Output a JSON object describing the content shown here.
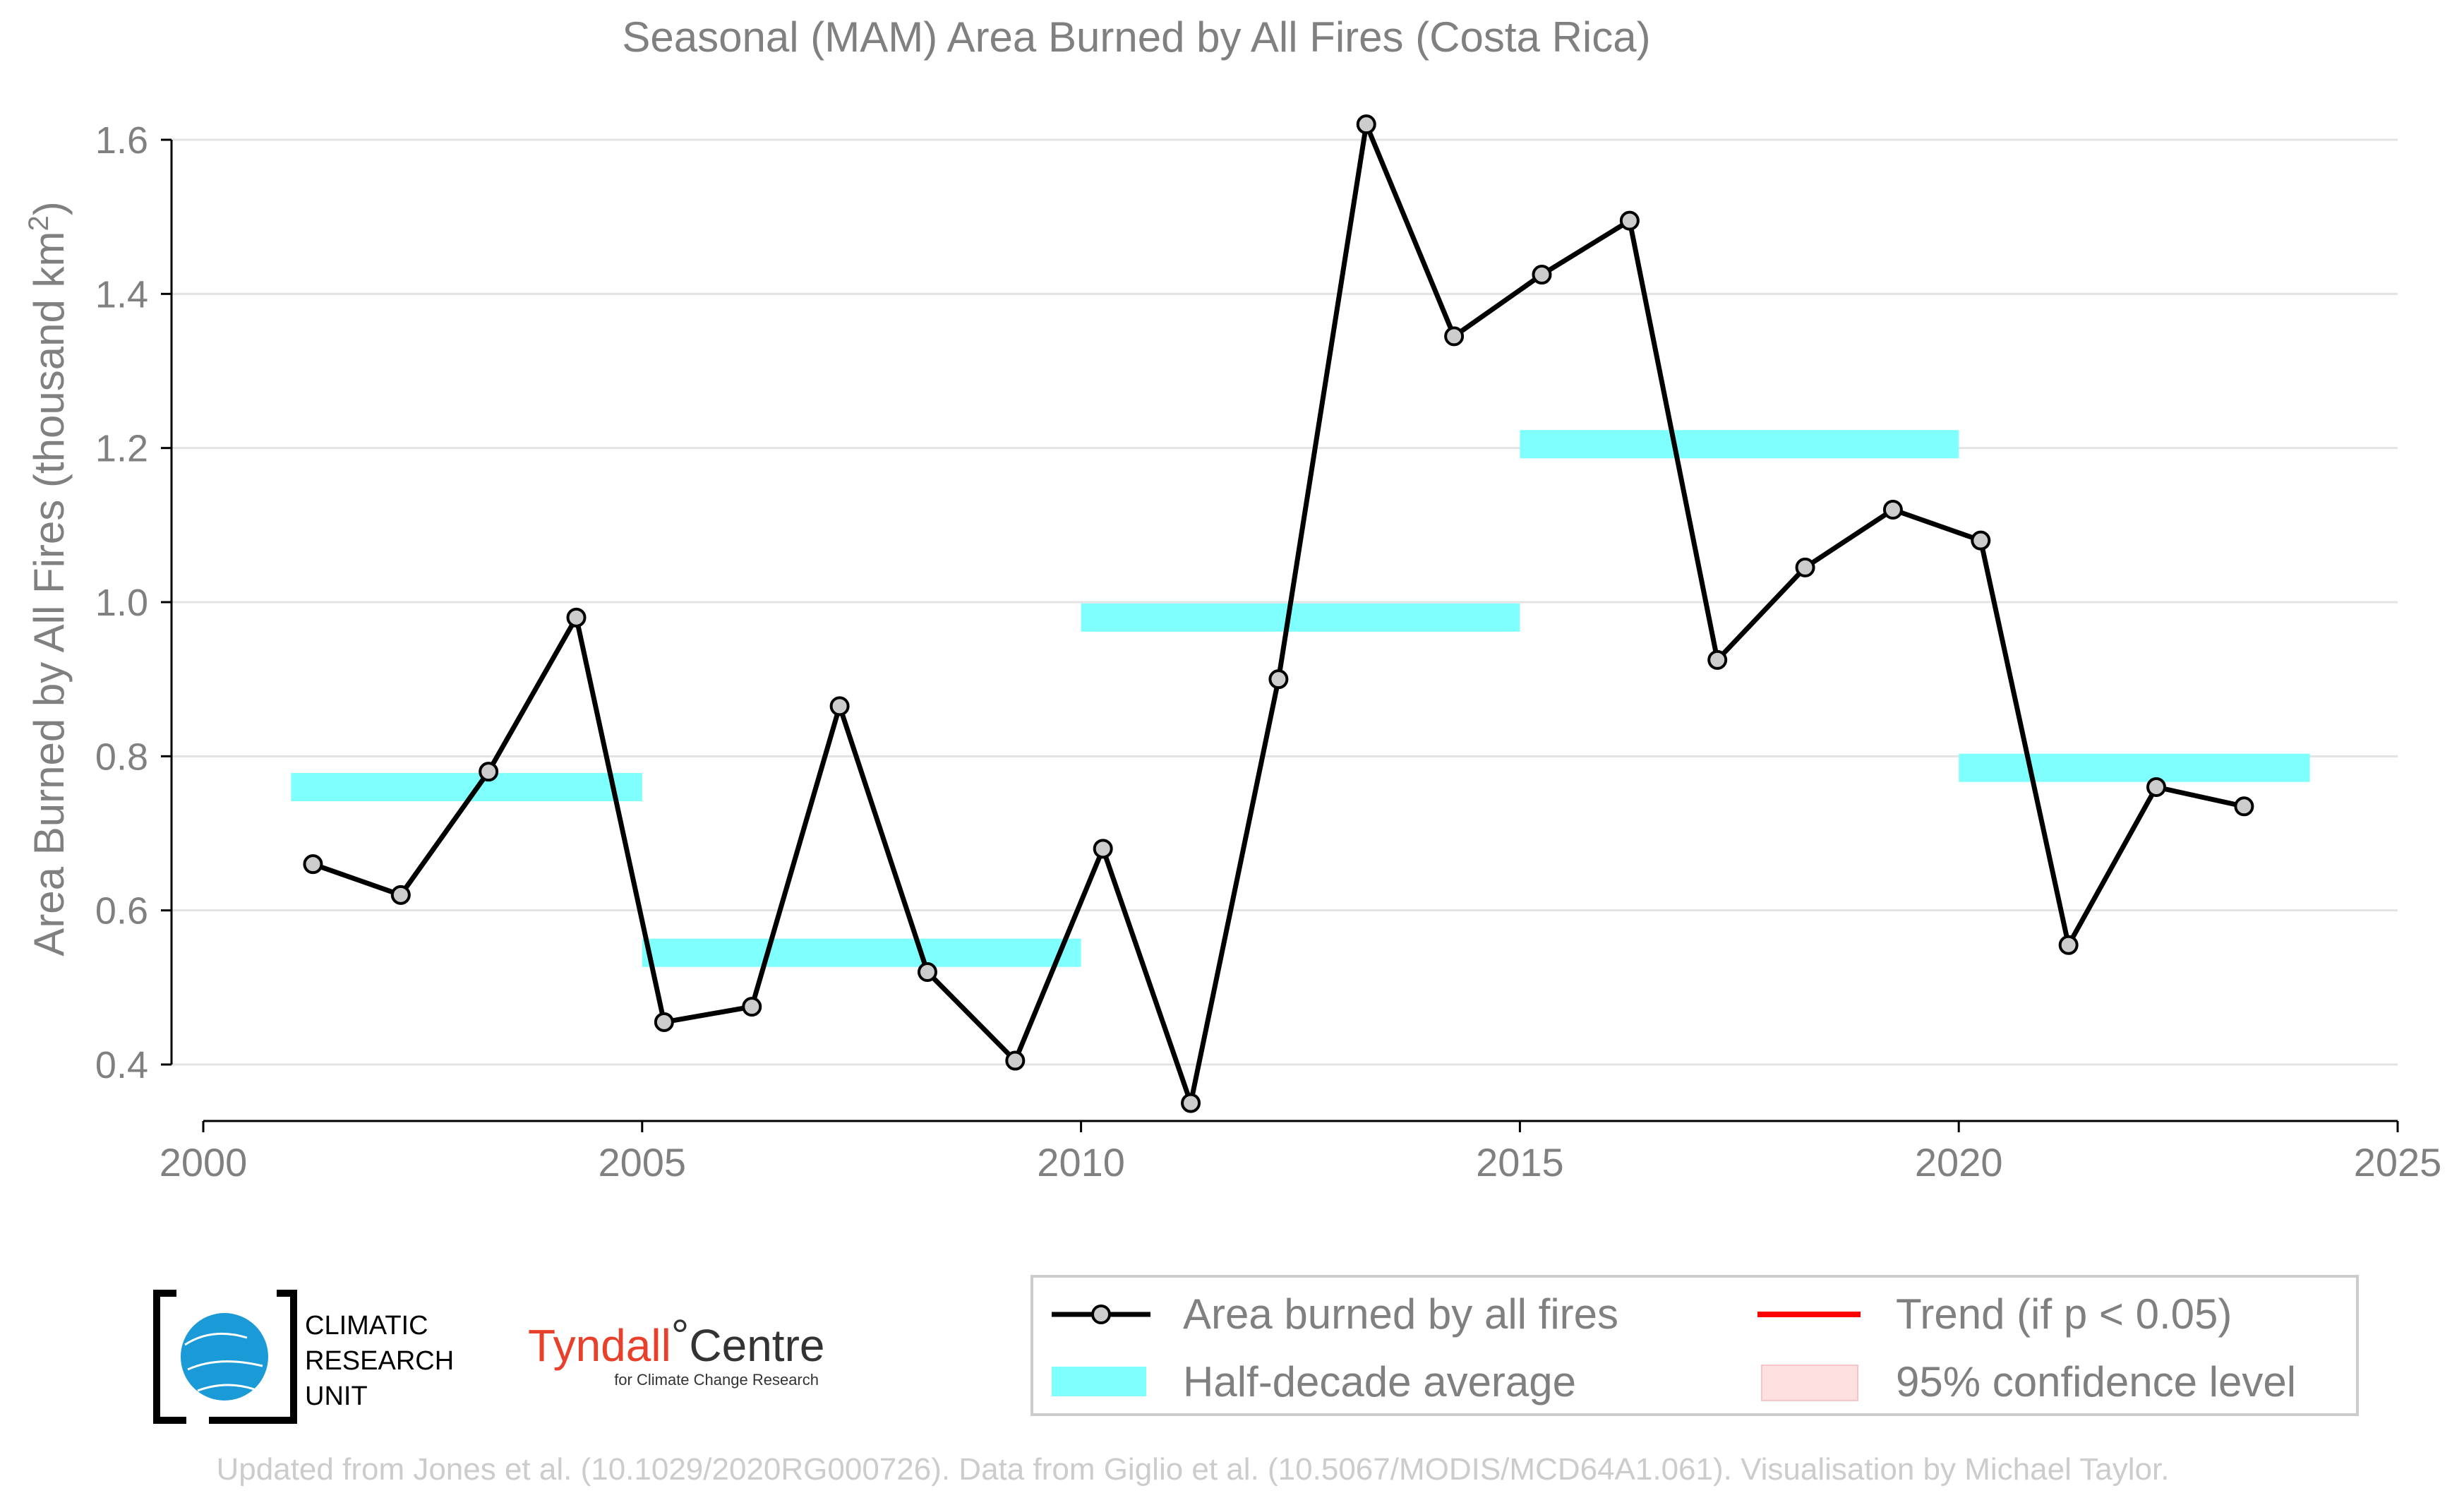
{
  "chart_data": {
    "type": "line",
    "title": "Seasonal (MAM) Area Burned by All Fires (Costa Rica)",
    "xlabel": "",
    "ylabel": "Area Burned by All Fires (thousand km",
    "ylabel_sup": "2",
    "ylabel_close": ")",
    "xlim": [
      2000,
      2025
    ],
    "ylim": [
      0.25,
      1.65
    ],
    "x_ticks": [
      2000,
      2005,
      2010,
      2015,
      2020,
      2025
    ],
    "y_ticks": [
      0.4,
      0.6,
      0.8,
      1.0,
      1.2,
      1.4,
      1.6
    ],
    "y_tick_labels": [
      "0.4",
      "0.6",
      "0.8",
      "1.0",
      "1.2",
      "1.4",
      "1.6"
    ],
    "grid": "horizontal",
    "legend_position": "bottom-right",
    "series": [
      {
        "name": "Area burned by all fires",
        "color": "#000000",
        "marker_color": "#cccccc",
        "x": [
          2001.25,
          2002.25,
          2003.25,
          2004.25,
          2005.25,
          2006.25,
          2007.25,
          2008.25,
          2009.25,
          2010.25,
          2011.25,
          2012.25,
          2013.25,
          2014.25,
          2015.25,
          2016.25,
          2017.25,
          2018.25,
          2019.25,
          2020.25,
          2021.25,
          2022.25,
          2023.25
        ],
        "values": [
          0.66,
          0.62,
          0.78,
          0.98,
          0.455,
          0.475,
          0.865,
          0.52,
          0.405,
          0.68,
          0.35,
          0.9,
          1.62,
          1.345,
          1.425,
          1.495,
          0.925,
          1.045,
          1.12,
          1.08,
          0.555,
          0.76,
          0.735
        ]
      }
    ],
    "half_decade_average": {
      "name": "Half-decade average",
      "color": "#80ffff",
      "segments": [
        {
          "x0": 2001,
          "x1": 2005,
          "y": 0.76
        },
        {
          "x0": 2005,
          "x1": 2010,
          "y": 0.545
        },
        {
          "x0": 2010,
          "x1": 2015,
          "y": 0.98
        },
        {
          "x0": 2015,
          "x1": 2020,
          "y": 1.205
        },
        {
          "x0": 2020,
          "x1": 2024,
          "y": 0.785
        }
      ]
    },
    "legend": [
      {
        "label": "Area burned by all fires",
        "kind": "line-marker",
        "color": "#000000"
      },
      {
        "label": "Trend (if p < 0.05)",
        "kind": "line",
        "color": "#ff0000"
      },
      {
        "label": "Half-decade average",
        "kind": "band",
        "color": "#80ffff"
      },
      {
        "label": "95% confidence level",
        "kind": "band",
        "color": "#ffe0e0"
      }
    ]
  },
  "logos": {
    "cru_lines": [
      "CLIMATIC",
      "RESEARCH",
      "UNIT"
    ],
    "tyndall_main": "Tyndall",
    "tyndall_degree": "°",
    "tyndall_centre": "Centre",
    "tyndall_sub": "for Climate Change Research"
  },
  "footer": "Updated from Jones et al. (10.1029/2020RG000726). Data from Giglio et al. (10.5067/MODIS/MCD64A1.061). Visualisation by Michael Taylor."
}
